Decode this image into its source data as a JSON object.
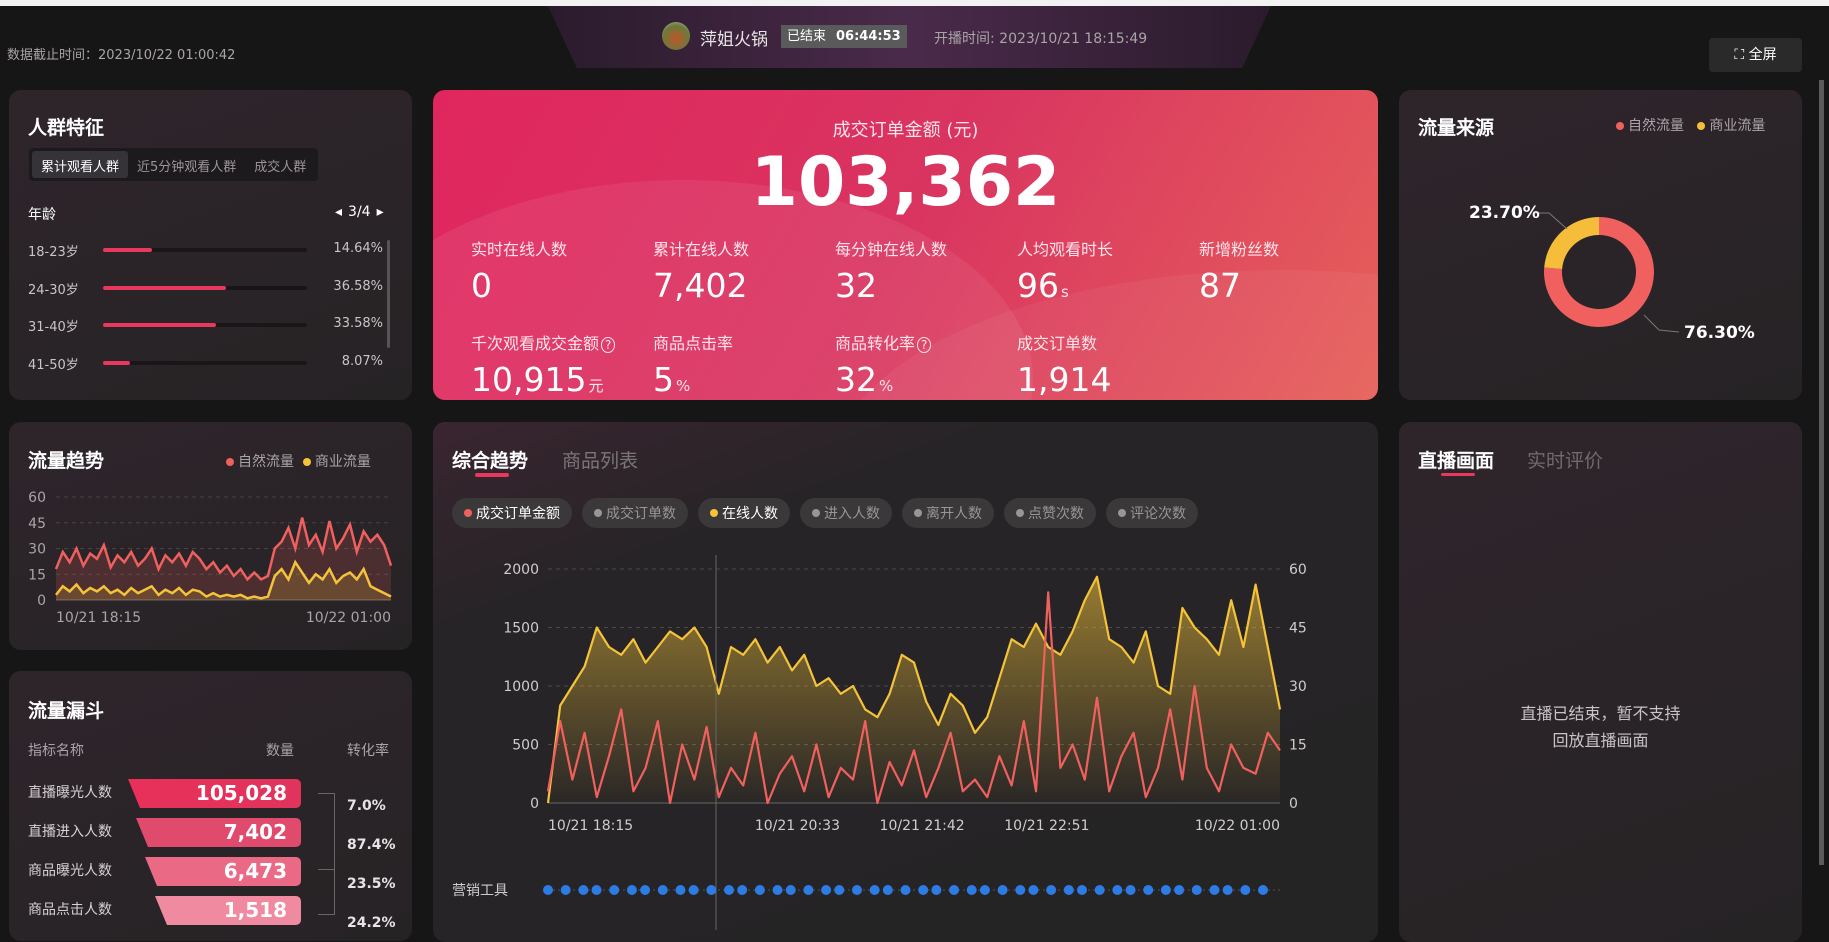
{
  "header": {
    "data_cutoff": "数据截止时间：2023/10/22 01:00:42",
    "room_name": "萍姐火锅",
    "status": "已结束",
    "duration": "06:44:53",
    "start_time": "开播时间: 2023/10/21 18:15:49",
    "fullscreen_label": "全屏"
  },
  "crowd": {
    "title": "人群特征",
    "tabs": [
      "累计观看人群",
      "近5分钟观看人群",
      "成交人群"
    ],
    "active_tab": 0,
    "dimension": "年龄",
    "pager": "3/4",
    "rows": [
      {
        "label": "18-23岁",
        "value": "14.64%",
        "pct": 14.64
      },
      {
        "label": "24-30岁",
        "value": "36.58%",
        "pct": 36.58
      },
      {
        "label": "31-40岁",
        "value": "33.58%",
        "pct": 33.58
      },
      {
        "label": "41-50岁",
        "value": "8.07%",
        "pct": 8.07
      }
    ]
  },
  "kpi": {
    "main_label": "成交订单金额 (元)",
    "main_value": "103,362",
    "items": [
      {
        "label": "实时在线人数",
        "value": "0",
        "unit": ""
      },
      {
        "label": "累计在线人数",
        "value": "7,402",
        "unit": ""
      },
      {
        "label": "每分钟在线人数",
        "value": "32",
        "unit": ""
      },
      {
        "label": "人均观看时长",
        "value": "96",
        "unit": "s"
      },
      {
        "label": "新增粉丝数",
        "value": "87",
        "unit": ""
      },
      {
        "label": "千次观看成交金额",
        "value": "10,915",
        "unit": "元",
        "help": true
      },
      {
        "label": "商品点击率",
        "value": "5",
        "unit": "%"
      },
      {
        "label": "商品转化率",
        "value": "32",
        "unit": "%",
        "help": true
      },
      {
        "label": "成交订单数",
        "value": "1,914",
        "unit": ""
      }
    ]
  },
  "traffic_source": {
    "title": "流量来源",
    "legend": [
      "自然流量",
      "商业流量"
    ],
    "colors": [
      "#f0605f",
      "#f5bd3a"
    ],
    "chart_data": {
      "type": "pie",
      "categories": [
        "自然流量",
        "商业流量"
      ],
      "values": [
        76.3,
        23.7
      ],
      "labels": [
        "76.30%",
        "23.70%"
      ]
    }
  },
  "traffic_trend": {
    "title": "流量趋势",
    "legend": [
      "自然流量",
      "商业流量"
    ],
    "chart_data": {
      "type": "area",
      "x_ticks": [
        "10/21 18:15",
        "10/22 01:00"
      ],
      "y_ticks": [
        "0",
        "15",
        "30",
        "45",
        "60"
      ],
      "ylim": [
        0,
        60
      ],
      "grid": true,
      "series": [
        {
          "name": "自然流量",
          "color": "#f0605f",
          "values": [
            18,
            28,
            22,
            30,
            20,
            27,
            24,
            32,
            19,
            26,
            22,
            28,
            20,
            24,
            30,
            18,
            26,
            22,
            27,
            20,
            28,
            24,
            18,
            22,
            16,
            20,
            14,
            18,
            12,
            16,
            12,
            14,
            30,
            34,
            42,
            30,
            48,
            32,
            38,
            28,
            46,
            30,
            36,
            44,
            28,
            40,
            34,
            38,
            32,
            20
          ]
        },
        {
          "name": "商业流量",
          "color": "#f5c33a",
          "values": [
            3,
            8,
            5,
            9,
            4,
            7,
            5,
            8,
            4,
            6,
            3,
            7,
            4,
            6,
            8,
            3,
            6,
            4,
            7,
            3,
            6,
            5,
            2,
            4,
            2,
            3,
            2,
            3,
            1,
            2,
            1,
            2,
            14,
            18,
            12,
            22,
            16,
            10,
            15,
            12,
            18,
            10,
            14,
            16,
            12,
            18,
            8,
            6,
            4,
            2
          ]
        }
      ]
    }
  },
  "funnel": {
    "title": "流量漏斗",
    "columns": [
      "指标名称",
      "数量",
      "转化率"
    ],
    "rows": [
      {
        "label": "直播曝光人数",
        "value": "105,028"
      },
      {
        "label": "直播进入人数",
        "value": "7,402"
      },
      {
        "label": "商品曝光人数",
        "value": "6,473"
      },
      {
        "label": "商品点击人数",
        "value": "1,518"
      }
    ],
    "rates": [
      "7.0%",
      "87.4%",
      "23.5%",
      "24.2%"
    ]
  },
  "trend": {
    "tabs": [
      "综合趋势",
      "商品列表"
    ],
    "active_tab": 0,
    "metrics": [
      {
        "label": "成交订单金额",
        "color": "#f0605f",
        "active": true
      },
      {
        "label": "成交订单数",
        "color": "#9a9597",
        "active": false
      },
      {
        "label": "在线人数",
        "color": "#f5c33a",
        "active": true
      },
      {
        "label": "进入人数",
        "color": "#9a9597",
        "active": false
      },
      {
        "label": "离开人数",
        "color": "#9a9597",
        "active": false
      },
      {
        "label": "点赞次数",
        "color": "#9a9597",
        "active": false
      },
      {
        "label": "评论次数",
        "color": "#9a9597",
        "active": false
      }
    ],
    "marketing_label": "营销工具",
    "marketing_events": 45,
    "chart_data": {
      "type": "line",
      "x_range": [
        "10/21 18:15",
        "10/22 01:00"
      ],
      "x_ticks": [
        "10/21 18:15",
        "10/21 20:33",
        "10/21 21:42",
        "10/21 22:51",
        "10/22 01:00"
      ],
      "y_left": {
        "ticks": [
          "0",
          "500",
          "1000",
          "1500",
          "2000"
        ],
        "lim": [
          0,
          2000
        ]
      },
      "y_right": {
        "ticks": [
          "0",
          "15",
          "30",
          "45",
          "60"
        ],
        "lim": [
          0,
          60
        ]
      },
      "grid": true,
      "series": [
        {
          "name": "在线人数",
          "axis": "right",
          "color": "#f5c33a",
          "values": [
            0,
            25,
            30,
            35,
            45,
            40,
            38,
            42,
            36,
            40,
            44,
            42,
            45,
            40,
            28,
            40,
            38,
            42,
            36,
            40,
            34,
            38,
            30,
            32,
            28,
            30,
            24,
            22,
            28,
            38,
            36,
            26,
            20,
            28,
            25,
            18,
            22,
            32,
            42,
            40,
            46,
            40,
            38,
            44,
            52,
            58,
            42,
            40,
            36,
            44,
            30,
            28,
            50,
            45,
            42,
            38,
            52,
            40,
            56,
            40,
            24
          ]
        },
        {
          "name": "成交订单金额",
          "axis": "left",
          "color": "#f0605f",
          "values": [
            100,
            700,
            200,
            600,
            50,
            400,
            800,
            100,
            300,
            700,
            0,
            500,
            200,
            650,
            50,
            300,
            150,
            600,
            0,
            250,
            400,
            100,
            500,
            50,
            300,
            200,
            700,
            0,
            350,
            150,
            450,
            50,
            300,
            600,
            100,
            200,
            50,
            400,
            150,
            700,
            100,
            1800,
            300,
            500,
            200,
            900,
            100,
            400,
            600,
            50,
            300,
            800,
            200,
            1000,
            300,
            100,
            500,
            300,
            250,
            600,
            450
          ]
        }
      ]
    }
  },
  "live": {
    "tabs": [
      "直播画面",
      "实时评价"
    ],
    "active_tab": 0,
    "message_line1": "直播已结束，暂不支持",
    "message_line2": "回放直播画面"
  }
}
